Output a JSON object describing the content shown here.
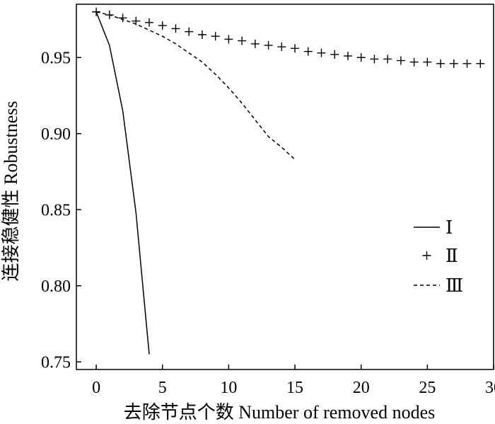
{
  "chart_data": {
    "type": "line",
    "title": "",
    "xlabel": "去除节点个数 Number of removed nodes",
    "ylabel": "连接稳健性 Robustness",
    "xlim": [
      -1.5,
      30
    ],
    "ylim": [
      0.745,
      0.985
    ],
    "xticks": [
      0,
      5,
      10,
      15,
      20,
      25,
      30
    ],
    "xtick_labels": [
      "0",
      "5",
      "10",
      "15",
      "20",
      "25",
      "30"
    ],
    "yticks": [
      0.75,
      0.8,
      0.85,
      0.9,
      0.95
    ],
    "ytick_labels": [
      "0.75",
      "0.80",
      "0.85",
      "0.90",
      "0.95"
    ],
    "grid": false,
    "legend_position": "right",
    "series": [
      {
        "name": "Ⅰ",
        "style": "solid",
        "x": [
          0,
          1,
          2,
          3,
          4
        ],
        "y": [
          0.98,
          0.958,
          0.915,
          0.848,
          0.755
        ]
      },
      {
        "name": "Ⅱ",
        "style": "plus",
        "x": [
          0,
          1,
          2,
          3,
          4,
          5,
          6,
          7,
          8,
          9,
          10,
          11,
          12,
          13,
          14,
          15,
          16,
          17,
          18,
          19,
          20,
          21,
          22,
          23,
          24,
          25,
          26,
          27,
          28,
          29
        ],
        "y": [
          0.98,
          0.978,
          0.976,
          0.974,
          0.973,
          0.971,
          0.969,
          0.967,
          0.965,
          0.964,
          0.962,
          0.961,
          0.959,
          0.958,
          0.957,
          0.956,
          0.954,
          0.953,
          0.952,
          0.951,
          0.95,
          0.949,
          0.949,
          0.948,
          0.947,
          0.947,
          0.946,
          0.946,
          0.946,
          0.946
        ]
      },
      {
        "name": "Ⅲ",
        "style": "dashed",
        "x": [
          0,
          1,
          2,
          3,
          4,
          5,
          6,
          7,
          8,
          9,
          10,
          11,
          12,
          13,
          14,
          15
        ],
        "y": [
          0.98,
          0.978,
          0.975,
          0.972,
          0.968,
          0.964,
          0.959,
          0.953,
          0.947,
          0.939,
          0.93,
          0.92,
          0.909,
          0.898,
          0.891,
          0.883
        ]
      }
    ]
  }
}
